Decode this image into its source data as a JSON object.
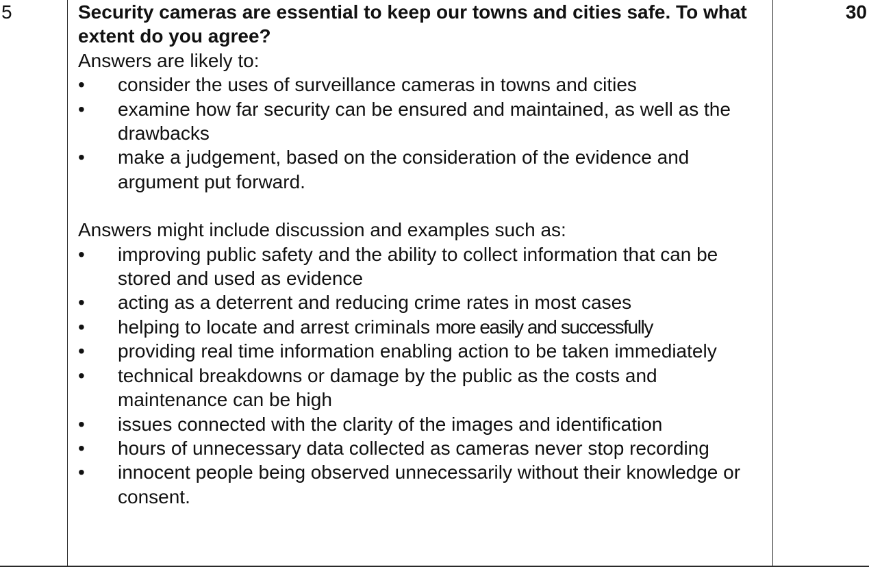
{
  "question_number": "5",
  "marks": "30",
  "question": "Security cameras are essential to keep our towns and cities safe. To what extent do you agree?",
  "likely_intro": "Answers are likely to:",
  "likely_items": [
    "consider the uses of surveillance cameras in towns and cities",
    "examine how far security can be ensured and maintained, as well as the drawbacks",
    "make a judgement, based on the consideration of the evidence and argument put forward."
  ],
  "include_intro": "Answers might include discussion and examples such as:",
  "include_items": [
    "improving public safety and the ability to collect information that can be stored and used as evidence",
    "acting as a deterrent and reducing crime rates in most cases",
    "helping to locate and arrest criminals",
    "providing real time information enabling action to be taken immediately",
    "technical breakdowns or damage by the public as the costs and maintenance can be high",
    "issues connected with the clarity of the images and identification",
    "hours of unnecessary data collected as cameras never stop recording",
    "innocent people being observed unnecessarily without their knowledge or consent."
  ],
  "include_item_3_condensed": "more easily and successfully",
  "bullet_char": "•"
}
